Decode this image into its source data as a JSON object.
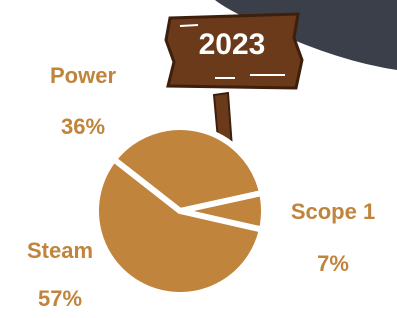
{
  "chart_data": {
    "type": "pie",
    "title": "2023",
    "categories": [
      "Power",
      "Scope 1",
      "Steam"
    ],
    "values": [
      36,
      7,
      57
    ],
    "value_labels": [
      "36%",
      "7%",
      "57%"
    ],
    "color": "#c0843c"
  }
}
